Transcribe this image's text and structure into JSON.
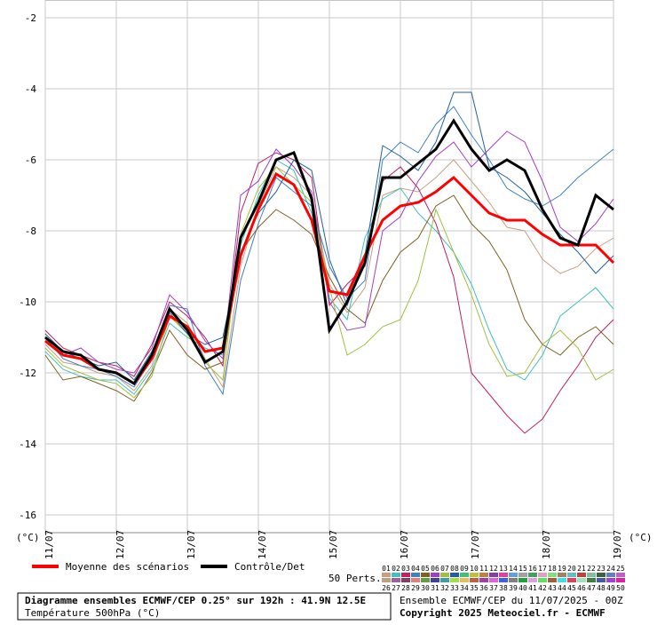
{
  "chart_data": {
    "type": "line",
    "title": "Diagramme ensembles ECMWF/CEP 0.25° sur 192h : 41.9N 12.5E",
    "subtitle": "Température 500hPa (°C)",
    "run_label": "Ensemble ECMWF/CEP du 11/07/2025 - 00Z",
    "copyright": "Copyright 2025 Meteociel.fr - ECMWF",
    "y_unit": "(°C)",
    "perts_label": "50 Perts.",
    "categories": [
      "11/07",
      null,
      null,
      null,
      "12/07",
      null,
      null,
      null,
      "13/07",
      null,
      null,
      null,
      "14/07",
      null,
      null,
      null,
      "15/07",
      null,
      null,
      null,
      "16/07",
      null,
      null,
      null,
      "17/07",
      null,
      null,
      null,
      "18/07",
      null,
      null,
      null,
      "19/07"
    ],
    "ylim": [
      -16.5,
      -1.5
    ],
    "yticks": [
      -2,
      -4,
      -6,
      -8,
      -10,
      -12,
      -14,
      -16
    ],
    "grid": true,
    "series": [
      {
        "name": "Moyenne des scénarios",
        "color": "#ff0000",
        "values": [
          -11.1,
          -11.5,
          -11.6,
          -11.9,
          -12.0,
          -12.3,
          -11.6,
          -10.4,
          -10.7,
          -11.4,
          -11.3,
          -8.7,
          -7.4,
          -6.4,
          -6.7,
          -7.7,
          -9.7,
          -9.8,
          -8.7,
          -7.7,
          -7.3,
          -7.2,
          -6.9,
          -6.5,
          -7.0,
          -7.5,
          -7.7,
          -7.7,
          -8.1,
          -8.4,
          -8.4,
          -8.4,
          -8.9
        ]
      },
      {
        "name": "Contrôle/Det",
        "color": "#000000",
        "values": [
          -11.0,
          -11.4,
          -11.5,
          -11.9,
          -12.0,
          -12.3,
          -11.5,
          -10.2,
          -10.8,
          -11.7,
          -11.4,
          -8.2,
          -7.2,
          -6.0,
          -5.8,
          -7.1,
          -10.8,
          -10.0,
          -8.9,
          -6.5,
          -6.5,
          -6.1,
          -5.7,
          -4.9,
          -5.7,
          -6.3,
          -6.0,
          -6.3,
          -7.4,
          -8.2,
          -8.4,
          -7.0,
          -7.4
        ]
      }
    ],
    "members": [
      {
        "name": "01",
        "color": "#c8a080",
        "values": [
          -11.2,
          -11.7,
          -11.8,
          -12.0,
          -12.1,
          -12.5,
          -11.8,
          -10.2,
          -10.6,
          -11.6,
          -12.4,
          -9.0,
          -7.3,
          -6.2,
          -6.5,
          -7.0,
          -9.5,
          -10.3,
          -9.6,
          -7.0,
          -6.8,
          -6.9,
          -6.5,
          -6.0,
          -6.6,
          -7.2,
          -7.9,
          -8.0,
          -8.8,
          -9.2,
          -9.0,
          -8.5,
          -8.2
        ]
      },
      {
        "name": "02",
        "color": "#40c0c0",
        "values": [
          -11.4,
          -11.9,
          -12.1,
          -12.2,
          -12.2,
          -12.6,
          -11.9,
          -10.6,
          -11.0,
          -11.3,
          -11.5,
          -8.4,
          -7.0,
          -6.0,
          -6.3,
          -7.5,
          -9.9,
          -10.5,
          -8.2,
          -7.1,
          -6.8,
          -7.5,
          -8.0,
          -8.6,
          -9.5,
          -10.8,
          -11.9,
          -12.2,
          -11.5,
          -10.4,
          -10.0,
          -9.6,
          -10.2
        ]
      },
      {
        "name": "03",
        "color": "#c02060",
        "values": [
          -10.8,
          -11.3,
          -11.5,
          -11.7,
          -11.8,
          -12.1,
          -11.2,
          -10.0,
          -10.4,
          -11.0,
          -11.8,
          -7.5,
          -6.1,
          -5.8,
          -6.0,
          -6.5,
          -10.1,
          -9.5,
          -9.0,
          -6.6,
          -6.2,
          -6.8,
          -7.8,
          -9.3,
          -12.0,
          -12.6,
          -13.2,
          -13.7,
          -13.3,
          -12.5,
          -11.8,
          -11.0,
          -10.5
        ]
      },
      {
        "name": "04",
        "color": "#4080c0",
        "values": [
          -11.0,
          -11.6,
          -11.8,
          -11.9,
          -12.1,
          -12.4,
          -11.6,
          -10.1,
          -10.2,
          -11.8,
          -12.6,
          -9.4,
          -7.8,
          -6.5,
          -6.9,
          -7.3,
          -9.0,
          -9.9,
          -9.4,
          -6.0,
          -5.5,
          -5.8,
          -5.0,
          -4.5,
          -5.3,
          -6.0,
          -6.8,
          -7.1,
          -7.3,
          -7.0,
          -6.5,
          -6.1,
          -5.7
        ]
      },
      {
        "name": "05",
        "color": "#806020",
        "values": [
          -11.5,
          -12.2,
          -12.1,
          -12.3,
          -12.5,
          -12.8,
          -12.0,
          -10.8,
          -11.5,
          -11.9,
          -11.7,
          -8.6,
          -7.9,
          -7.4,
          -7.7,
          -8.1,
          -9.3,
          -10.2,
          -10.6,
          -9.4,
          -8.6,
          -8.2,
          -7.3,
          -7.0,
          -7.8,
          -8.3,
          -9.1,
          -10.5,
          -11.2,
          -11.5,
          -11.0,
          -10.7,
          -11.2
        ]
      },
      {
        "name": "06",
        "color": "#a040c0",
        "values": [
          -11.1,
          -11.5,
          -11.3,
          -11.7,
          -11.9,
          -12.0,
          -11.3,
          -9.8,
          -10.3,
          -11.1,
          -11.6,
          -7.0,
          -6.6,
          -5.7,
          -6.2,
          -6.9,
          -10.0,
          -10.8,
          -10.7,
          -8.0,
          -7.6,
          -6.6,
          -5.9,
          -5.5,
          -6.2,
          -5.7,
          -5.2,
          -5.5,
          -6.6,
          -7.9,
          -8.3,
          -7.8,
          -7.1
        ]
      },
      {
        "name": "07",
        "color": "#a0c040",
        "values": [
          -11.3,
          -11.8,
          -12.0,
          -12.2,
          -12.3,
          -12.7,
          -12.1,
          -10.4,
          -10.9,
          -11.7,
          -12.2,
          -8.1,
          -6.8,
          -6.2,
          -6.7,
          -7.2,
          -9.6,
          -11.5,
          -11.2,
          -10.7,
          -10.5,
          -9.4,
          -7.4,
          -8.6,
          -9.8,
          -11.2,
          -12.1,
          -12.0,
          -11.2,
          -10.8,
          -11.3,
          -12.2,
          -11.9
        ]
      },
      {
        "name": "08",
        "color": "#2060a0",
        "values": [
          -10.9,
          -11.4,
          -11.6,
          -11.8,
          -11.7,
          -12.2,
          -11.4,
          -10.3,
          -10.9,
          -11.2,
          -11.0,
          -8.6,
          -7.5,
          -6.9,
          -6.0,
          -6.3,
          -8.8,
          -10.1,
          -8.7,
          -5.6,
          -5.9,
          -6.3,
          -5.5,
          -4.1,
          -4.1,
          -6.2,
          -6.5,
          -6.9,
          -7.5,
          -8.1,
          -8.6,
          -9.2,
          -8.7
        ]
      },
      {
        "name": "09",
        "color": "#40c080"
      },
      {
        "name": "10",
        "color": "#c0c040"
      },
      {
        "name": "11",
        "color": "#c08040"
      },
      {
        "name": "12",
        "color": "#8040a0"
      },
      {
        "name": "13",
        "color": "#e040a0"
      },
      {
        "name": "14",
        "color": "#60a0e0"
      },
      {
        "name": "15",
        "color": "#a0a0a0"
      },
      {
        "name": "16",
        "color": "#40a060"
      },
      {
        "name": "17",
        "color": "#e0a0c0"
      },
      {
        "name": "18",
        "color": "#80e080"
      },
      {
        "name": "19",
        "color": "#a08060"
      },
      {
        "name": "20",
        "color": "#60c0c0"
      },
      {
        "name": "21",
        "color": "#c04040"
      },
      {
        "name": "22",
        "color": "#80c0a0"
      },
      {
        "name": "23",
        "color": "#406040"
      },
      {
        "name": "24",
        "color": "#6080c0"
      },
      {
        "name": "25",
        "color": "#c060c0"
      },
      {
        "name": "26",
        "color": "#c0a080"
      },
      {
        "name": "27",
        "color": "#a060a0"
      },
      {
        "name": "28",
        "color": "#804060"
      },
      {
        "name": "29",
        "color": "#e08080"
      },
      {
        "name": "30",
        "color": "#60a040"
      },
      {
        "name": "31",
        "color": "#4040a0"
      },
      {
        "name": "32",
        "color": "#40a0a0"
      },
      {
        "name": "33",
        "color": "#a0e040"
      },
      {
        "name": "34",
        "color": "#e0c060"
      },
      {
        "name": "35",
        "color": "#c06040"
      },
      {
        "name": "36",
        "color": "#a040a0"
      },
      {
        "name": "37",
        "color": "#e060e0"
      },
      {
        "name": "38",
        "color": "#4060e0"
      },
      {
        "name": "39",
        "color": "#808080"
      },
      {
        "name": "40",
        "color": "#20a040"
      },
      {
        "name": "41",
        "color": "#e0a0e0"
      },
      {
        "name": "42",
        "color": "#60e060"
      },
      {
        "name": "43",
        "color": "#a06040"
      },
      {
        "name": "44",
        "color": "#40e0e0"
      },
      {
        "name": "45",
        "color": "#e04060"
      },
      {
        "name": "46",
        "color": "#a0e0c0"
      },
      {
        "name": "47",
        "color": "#408040"
      },
      {
        "name": "48",
        "color": "#4060a0"
      },
      {
        "name": "49",
        "color": "#a040e0"
      },
      {
        "name": "50",
        "color": "#e020a0"
      }
    ]
  }
}
